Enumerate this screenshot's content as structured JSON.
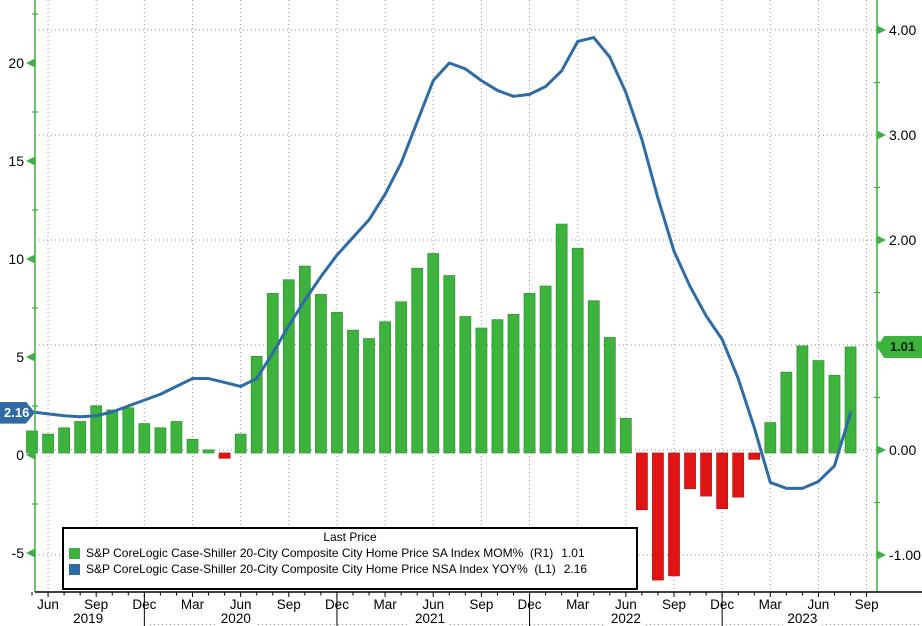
{
  "chart_data": {
    "type": "combo",
    "title": "",
    "months": [
      "2019-05",
      "2019-06",
      "2019-07",
      "2019-08",
      "2019-09",
      "2019-10",
      "2019-11",
      "2019-12",
      "2020-01",
      "2020-02",
      "2020-03",
      "2020-04",
      "2020-05",
      "2020-06",
      "2020-07",
      "2020-08",
      "2020-09",
      "2020-10",
      "2020-11",
      "2020-12",
      "2021-01",
      "2021-02",
      "2021-03",
      "2021-04",
      "2021-05",
      "2021-06",
      "2021-07",
      "2021-08",
      "2021-09",
      "2021-10",
      "2021-11",
      "2021-12",
      "2022-01",
      "2022-02",
      "2022-03",
      "2022-04",
      "2022-05",
      "2022-06",
      "2022-07",
      "2022-08",
      "2022-09",
      "2022-10",
      "2022-11",
      "2022-12",
      "2023-01",
      "2023-02",
      "2023-03",
      "2023-04",
      "2023-05",
      "2023-06",
      "2023-07",
      "2023-08"
    ],
    "series": [
      {
        "name": "S&P CoreLogic Case-Shiller 20-City Composite City Home Price SA Index MOM%",
        "type": "bar",
        "axis": "R1",
        "color_positive": "#3db23c",
        "color_negative": "#e11414",
        "values": [
          0.21,
          0.18,
          0.24,
          0.3,
          0.45,
          0.41,
          0.43,
          0.28,
          0.24,
          0.3,
          0.13,
          0.03,
          -0.05,
          0.18,
          0.92,
          1.52,
          1.65,
          1.78,
          1.51,
          1.34,
          1.17,
          1.09,
          1.25,
          1.44,
          1.76,
          1.9,
          1.69,
          1.3,
          1.19,
          1.27,
          1.32,
          1.52,
          1.59,
          2.18,
          1.95,
          1.45,
          1.1,
          0.33,
          -0.54,
          -1.21,
          -1.17,
          -0.34,
          -0.41,
          -0.53,
          -0.42,
          -0.06,
          0.29,
          0.77,
          1.02,
          0.88,
          0.74,
          1.01
        ],
        "last_value": 1.01
      },
      {
        "name": "S&P CoreLogic Case-Shiller 20-City Composite City Home Price NSA Index YOY%",
        "type": "line",
        "axis": "L1",
        "color": "#2f6ba4",
        "values": [
          2.2,
          2.1,
          2.0,
          1.95,
          2.0,
          2.2,
          2.5,
          2.8,
          3.1,
          3.5,
          3.9,
          3.9,
          3.7,
          3.5,
          3.9,
          5.2,
          6.6,
          7.9,
          9.1,
          10.2,
          11.1,
          12.0,
          13.3,
          14.9,
          17.0,
          19.1,
          20.0,
          19.7,
          19.1,
          18.6,
          18.3,
          18.4,
          18.8,
          19.6,
          21.1,
          21.3,
          20.3,
          18.5,
          16.1,
          13.1,
          10.4,
          8.6,
          7.1,
          5.9,
          3.9,
          1.4,
          -1.4,
          -1.7,
          -1.7,
          -1.35,
          -0.55,
          2.16
        ],
        "last_value": 2.16
      }
    ],
    "left_axis": {
      "side": "L1",
      "tick_values": [
        20,
        15,
        10,
        5,
        0,
        -5
      ],
      "tick_labels": [
        "20",
        "15",
        "10",
        "5",
        "0",
        "-5"
      ],
      "last_value": 2.16,
      "last_label": "2.16",
      "badge_color": "#2f6ba4"
    },
    "right_axis": {
      "side": "R1",
      "tick_values": [
        4,
        3,
        2,
        1,
        0,
        -1
      ],
      "tick_labels": [
        "4.00",
        "3.00",
        "2.00",
        "1.00",
        "0.00",
        "-1.00"
      ],
      "last_value": 1.01,
      "last_label": "1.01",
      "badge_color": "#3db23c"
    },
    "x_axis": {
      "quarter_ticks": [
        {
          "m": 1,
          "label": "Jun"
        },
        {
          "m": 4,
          "label": "Sep"
        },
        {
          "m": 7,
          "label": "Dec"
        },
        {
          "m": 10,
          "label": "Mar"
        },
        {
          "m": 13,
          "label": "Jun"
        },
        {
          "m": 16,
          "label": "Sep"
        },
        {
          "m": 19,
          "label": "Dec"
        },
        {
          "m": 22,
          "label": "Mar"
        },
        {
          "m": 25,
          "label": "Jun"
        },
        {
          "m": 28,
          "label": "Sep"
        },
        {
          "m": 31,
          "label": "Dec"
        },
        {
          "m": 34,
          "label": "Mar"
        },
        {
          "m": 37,
          "label": "Jun"
        },
        {
          "m": 40,
          "label": "Sep"
        },
        {
          "m": 43,
          "label": "Dec"
        },
        {
          "m": 46,
          "label": "Mar"
        },
        {
          "m": 49,
          "label": "Jun"
        },
        {
          "m": 52,
          "label": "Sep"
        }
      ],
      "year_labels": [
        {
          "m": 3.5,
          "text": "2019"
        },
        {
          "m": 12.7,
          "text": "2020"
        },
        {
          "m": 24.8,
          "text": "2021"
        },
        {
          "m": 37.0,
          "text": "2022"
        },
        {
          "m": 48.0,
          "text": "2023"
        }
      ],
      "year_separator_months": [
        7,
        19,
        31,
        43
      ],
      "month_tick_count": 53
    },
    "grid": {
      "h_line_color": "#8f8f8f",
      "v_line_color": "#9a9a9a",
      "axis_color": "#3cb043",
      "bottom_axis_color": "#000000"
    }
  },
  "legend": {
    "title": "Last Price",
    "entries": [
      {
        "swatch_color": "#3db23c",
        "label": "S&P CoreLogic Case-Shiller 20-City Composite City Home Price SA Index MOM%  (R1)",
        "value": "1.01"
      },
      {
        "swatch_color": "#2f6ba4",
        "label": "S&P CoreLogic Case-Shiller 20-City Composite City Home Price NSA Index YOY%  (L1)",
        "value": "2.16"
      }
    ]
  }
}
